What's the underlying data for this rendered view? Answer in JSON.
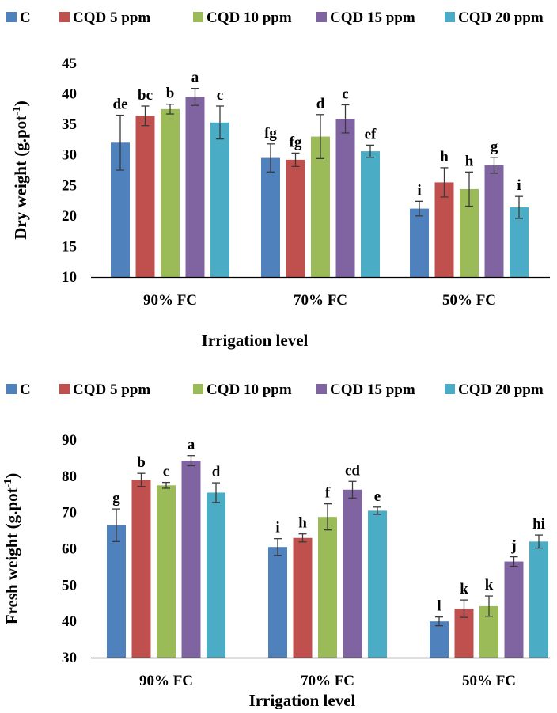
{
  "chart_data": [
    {
      "type": "bar",
      "categories": [
        "90% FC",
        "70% FC",
        "50% FC"
      ],
      "series": [
        {
          "name": "C",
          "values": [
            32.0,
            29.5,
            21.2
          ],
          "errors": [
            4.5,
            2.3,
            1.2
          ],
          "letters": [
            "de",
            "fg",
            "i"
          ]
        },
        {
          "name": "CQD 5 ppm",
          "values": [
            36.4,
            29.2,
            25.5
          ],
          "errors": [
            1.6,
            1.1,
            2.4
          ],
          "letters": [
            "bc",
            "fg",
            "h"
          ]
        },
        {
          "name": "CQD 10 ppm",
          "values": [
            37.5,
            33.0,
            24.4
          ],
          "errors": [
            0.8,
            3.6,
            2.8
          ],
          "letters": [
            "b",
            "d",
            "h"
          ]
        },
        {
          "name": "CQD 15 ppm",
          "values": [
            39.5,
            35.9,
            28.3
          ],
          "errors": [
            1.4,
            2.3,
            1.3
          ],
          "letters": [
            "a",
            "c",
            "g"
          ]
        },
        {
          "name": "CQD 20 ppm",
          "values": [
            35.3,
            30.6,
            21.4
          ],
          "errors": [
            2.7,
            1.0,
            1.8
          ],
          "letters": [
            "c",
            "ef",
            "i"
          ]
        }
      ],
      "colors": [
        "#4F81BD",
        "#C0504D",
        "#9BBB59",
        "#8064A2",
        "#4BACC6"
      ],
      "xlabel": "Irrigation level",
      "ylabel": "Dry weight (g.pot",
      "ylabel_sup": "-1",
      "ylabel_end": ")",
      "ylim": [
        10,
        45
      ],
      "yticks": [
        10,
        15,
        20,
        25,
        30,
        35,
        40,
        45
      ],
      "legend_position": "top",
      "grid": false
    },
    {
      "type": "bar",
      "categories": [
        "90% FC",
        "70% FC",
        "50% FC"
      ],
      "series": [
        {
          "name": "C",
          "values": [
            66.5,
            60.5,
            40.0
          ],
          "errors": [
            4.5,
            2.3,
            1.2
          ],
          "letters": [
            "g",
            "i",
            "l"
          ]
        },
        {
          "name": "CQD 5 ppm",
          "values": [
            79.0,
            63.0,
            43.5
          ],
          "errors": [
            1.8,
            1.1,
            2.4
          ],
          "letters": [
            "b",
            "h",
            "k"
          ]
        },
        {
          "name": "CQD 10 ppm",
          "values": [
            77.5,
            68.8,
            44.2
          ],
          "errors": [
            0.8,
            3.6,
            2.8
          ],
          "letters": [
            "c",
            "f",
            "k"
          ]
        },
        {
          "name": "CQD 15 ppm",
          "values": [
            84.3,
            76.3,
            56.5
          ],
          "errors": [
            1.4,
            2.3,
            1.3
          ],
          "letters": [
            "a",
            "cd",
            "j"
          ]
        },
        {
          "name": "CQD 20 ppm",
          "values": [
            75.5,
            70.5,
            62.0
          ],
          "errors": [
            2.7,
            1.0,
            1.8
          ],
          "letters": [
            "d",
            "e",
            "hi"
          ]
        }
      ],
      "colors": [
        "#4F81BD",
        "#C0504D",
        "#9BBB59",
        "#8064A2",
        "#4BACC6"
      ],
      "xlabel": "Irrigation level",
      "ylabel": "Fresh weight (g.pot",
      "ylabel_sup": "-1",
      "ylabel_end": ")",
      "ylim": [
        30,
        90
      ],
      "yticks": [
        30,
        40,
        50,
        60,
        70,
        80,
        90
      ],
      "legend_position": "top",
      "grid": false
    }
  ]
}
